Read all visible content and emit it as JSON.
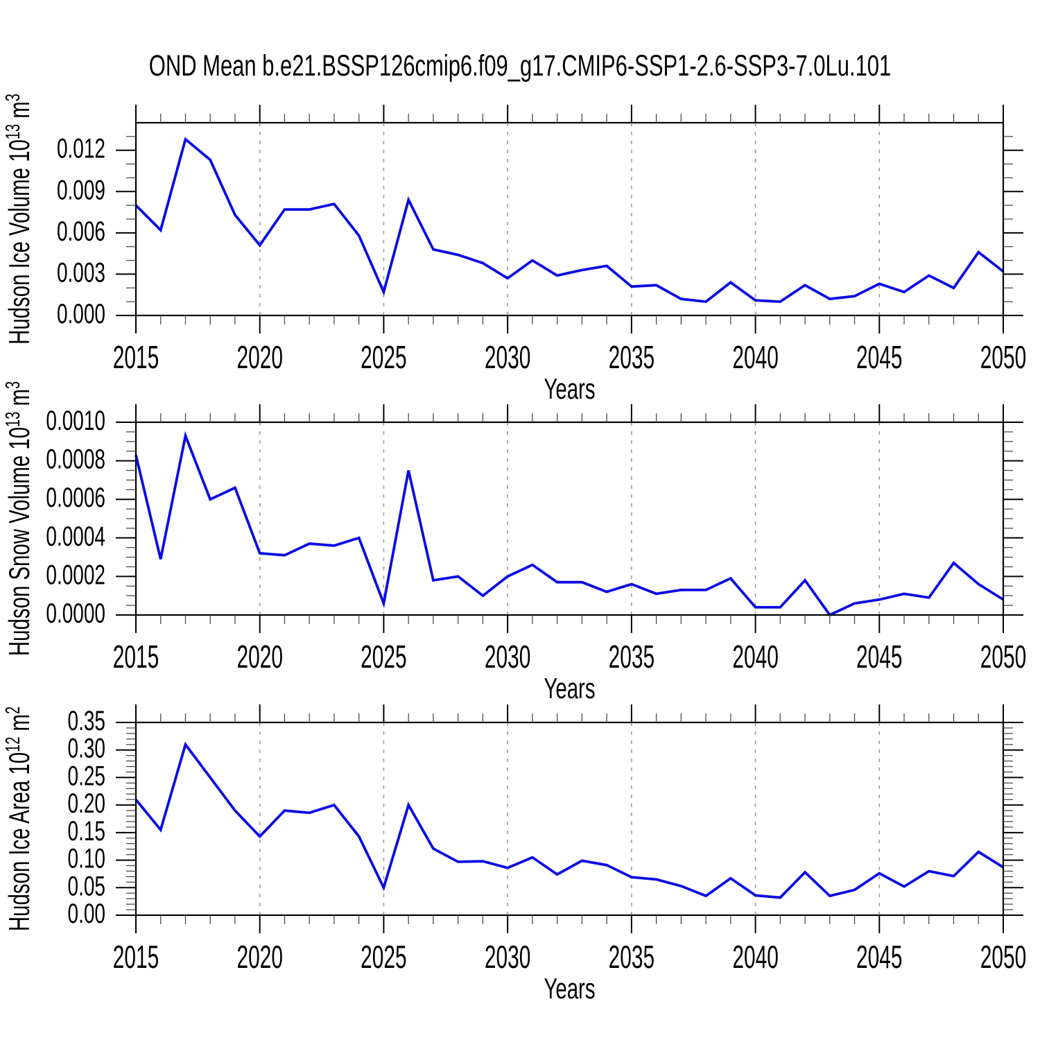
{
  "title": "OND Mean b.e21.BSSP126cmip6.f09_g17.CMIP6-SSP1-2.6-SSP3-7.0Lu.101",
  "chart_data": {
    "type": "line",
    "line_color": "#0B0BE6",
    "x_axis": {
      "label": "Years",
      "range": [
        2015,
        2050
      ],
      "major_ticks": [
        2015,
        2020,
        2025,
        2030,
        2035,
        2040,
        2045,
        2050
      ],
      "minor_step": 1,
      "gridline_years": [
        2020,
        2025,
        2030,
        2035,
        2040,
        2045
      ],
      "grid": "vertical-dashed"
    },
    "years": [
      2015,
      2016,
      2017,
      2018,
      2019,
      2020,
      2021,
      2022,
      2023,
      2024,
      2025,
      2026,
      2027,
      2028,
      2029,
      2030,
      2031,
      2032,
      2033,
      2034,
      2035,
      2036,
      2037,
      2038,
      2039,
      2040,
      2041,
      2042,
      2043,
      2044,
      2045,
      2046,
      2047,
      2048,
      2049,
      2050
    ],
    "panels": [
      {
        "id": "ice-volume",
        "ylabel_rich": "Hudson Ice Volume 10^13^ m^3^",
        "ylabel_plain": "Hudson Ice Volume 10^13 m^3",
        "ylim": [
          0,
          0.014
        ],
        "ytick_values": [
          0.0,
          0.003,
          0.006,
          0.009,
          0.012
        ],
        "ytick_labels": [
          "0.000",
          "0.003",
          "0.006",
          "0.009",
          "0.012"
        ],
        "yminor_step": 0.001,
        "values": [
          0.008,
          0.0062,
          0.0128,
          0.0113,
          0.0073,
          0.0051,
          0.0077,
          0.0077,
          0.0081,
          0.0058,
          0.0017,
          0.0084,
          0.0048,
          0.0044,
          0.0038,
          0.0027,
          0.004,
          0.0029,
          0.0033,
          0.0036,
          0.0021,
          0.0022,
          0.0012,
          0.001,
          0.0024,
          0.0011,
          0.001,
          0.0022,
          0.0012,
          0.0014,
          0.0023,
          0.0017,
          0.0029,
          0.002,
          0.0046,
          0.0032
        ]
      },
      {
        "id": "snow-volume",
        "ylabel_rich": "Hudson Snow Volume 10^13^ m^3^",
        "ylabel_plain": "Hudson Snow Volume 10^13 m^3",
        "ylim": [
          0,
          0.001
        ],
        "ytick_values": [
          0.0,
          0.0002,
          0.0004,
          0.0006,
          0.0008,
          0.001
        ],
        "ytick_labels": [
          "0.0000",
          "0.0002",
          "0.0004",
          "0.0006",
          "0.0008",
          "0.0010"
        ],
        "yminor_step": 5e-05,
        "values": [
          0.00083,
          0.00029,
          0.00093,
          0.0006,
          0.00066,
          0.00032,
          0.00031,
          0.00037,
          0.00036,
          0.0004,
          6e-05,
          0.00075,
          0.00018,
          0.0002,
          0.0001,
          0.0002,
          0.00026,
          0.00017,
          0.00017,
          0.00012,
          0.00016,
          0.00011,
          0.00013,
          0.00013,
          0.00019,
          4e-05,
          4e-05,
          0.00018,
          0.0,
          6e-05,
          8e-05,
          0.00011,
          9e-05,
          0.00027,
          0.00016,
          8e-05
        ]
      },
      {
        "id": "ice-area",
        "ylabel_rich": "Hudson Ice Area 10^12^ m^2^",
        "ylabel_plain": "Hudson Ice Area 10^12 m^2",
        "ylim": [
          0,
          0.35
        ],
        "ytick_values": [
          0.0,
          0.05,
          0.1,
          0.15,
          0.2,
          0.25,
          0.3,
          0.35
        ],
        "ytick_labels": [
          "0.00",
          "0.05",
          "0.10",
          "0.15",
          "0.20",
          "0.25",
          "0.30",
          "0.35"
        ],
        "yminor_step": 0.01,
        "values": [
          0.21,
          0.155,
          0.31,
          0.25,
          0.19,
          0.143,
          0.19,
          0.186,
          0.2,
          0.143,
          0.05,
          0.2,
          0.121,
          0.097,
          0.098,
          0.086,
          0.105,
          0.074,
          0.099,
          0.091,
          0.069,
          0.065,
          0.053,
          0.035,
          0.067,
          0.036,
          0.032,
          0.078,
          0.035,
          0.046,
          0.076,
          0.052,
          0.08,
          0.071,
          0.115,
          0.087
        ]
      }
    ]
  }
}
